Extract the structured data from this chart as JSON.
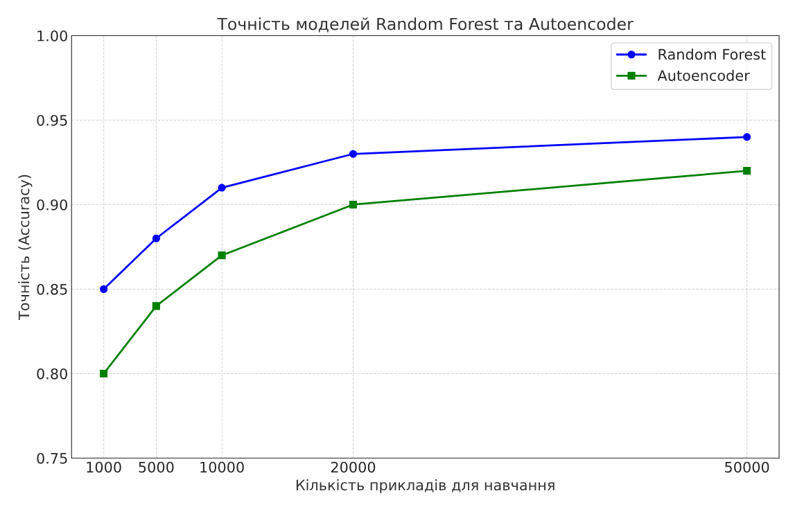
{
  "chart_data": {
    "type": "line",
    "title": "Точність моделей Random Forest та Autoencoder",
    "xlabel": "Кількість прикладів для навчання",
    "ylabel": "Точність (Accuracy)",
    "x": [
      1000,
      5000,
      10000,
      20000,
      50000
    ],
    "series": [
      {
        "name": "Random Forest",
        "color": "#0000ff",
        "marker": "circle",
        "values": [
          0.85,
          0.88,
          0.91,
          0.93,
          0.94
        ]
      },
      {
        "name": "Autoencoder",
        "color": "#008000",
        "marker": "square",
        "values": [
          0.8,
          0.84,
          0.87,
          0.9,
          0.92
        ]
      }
    ],
    "xlim": [
      -1450,
      52450
    ],
    "xticks": [
      1000,
      5000,
      10000,
      20000,
      50000
    ],
    "ylim": [
      0.75,
      1.0
    ],
    "yticks": [
      {
        "value": 0.75,
        "label": "0.75"
      },
      {
        "value": 0.8,
        "label": "0.80"
      },
      {
        "value": 0.85,
        "label": "0.85"
      },
      {
        "value": 0.9,
        "label": "0.90"
      },
      {
        "value": 0.95,
        "label": "0.95"
      },
      {
        "value": 1.0,
        "label": "1.00"
      }
    ],
    "grid": true,
    "legend": "top right",
    "line_style": "solid"
  }
}
